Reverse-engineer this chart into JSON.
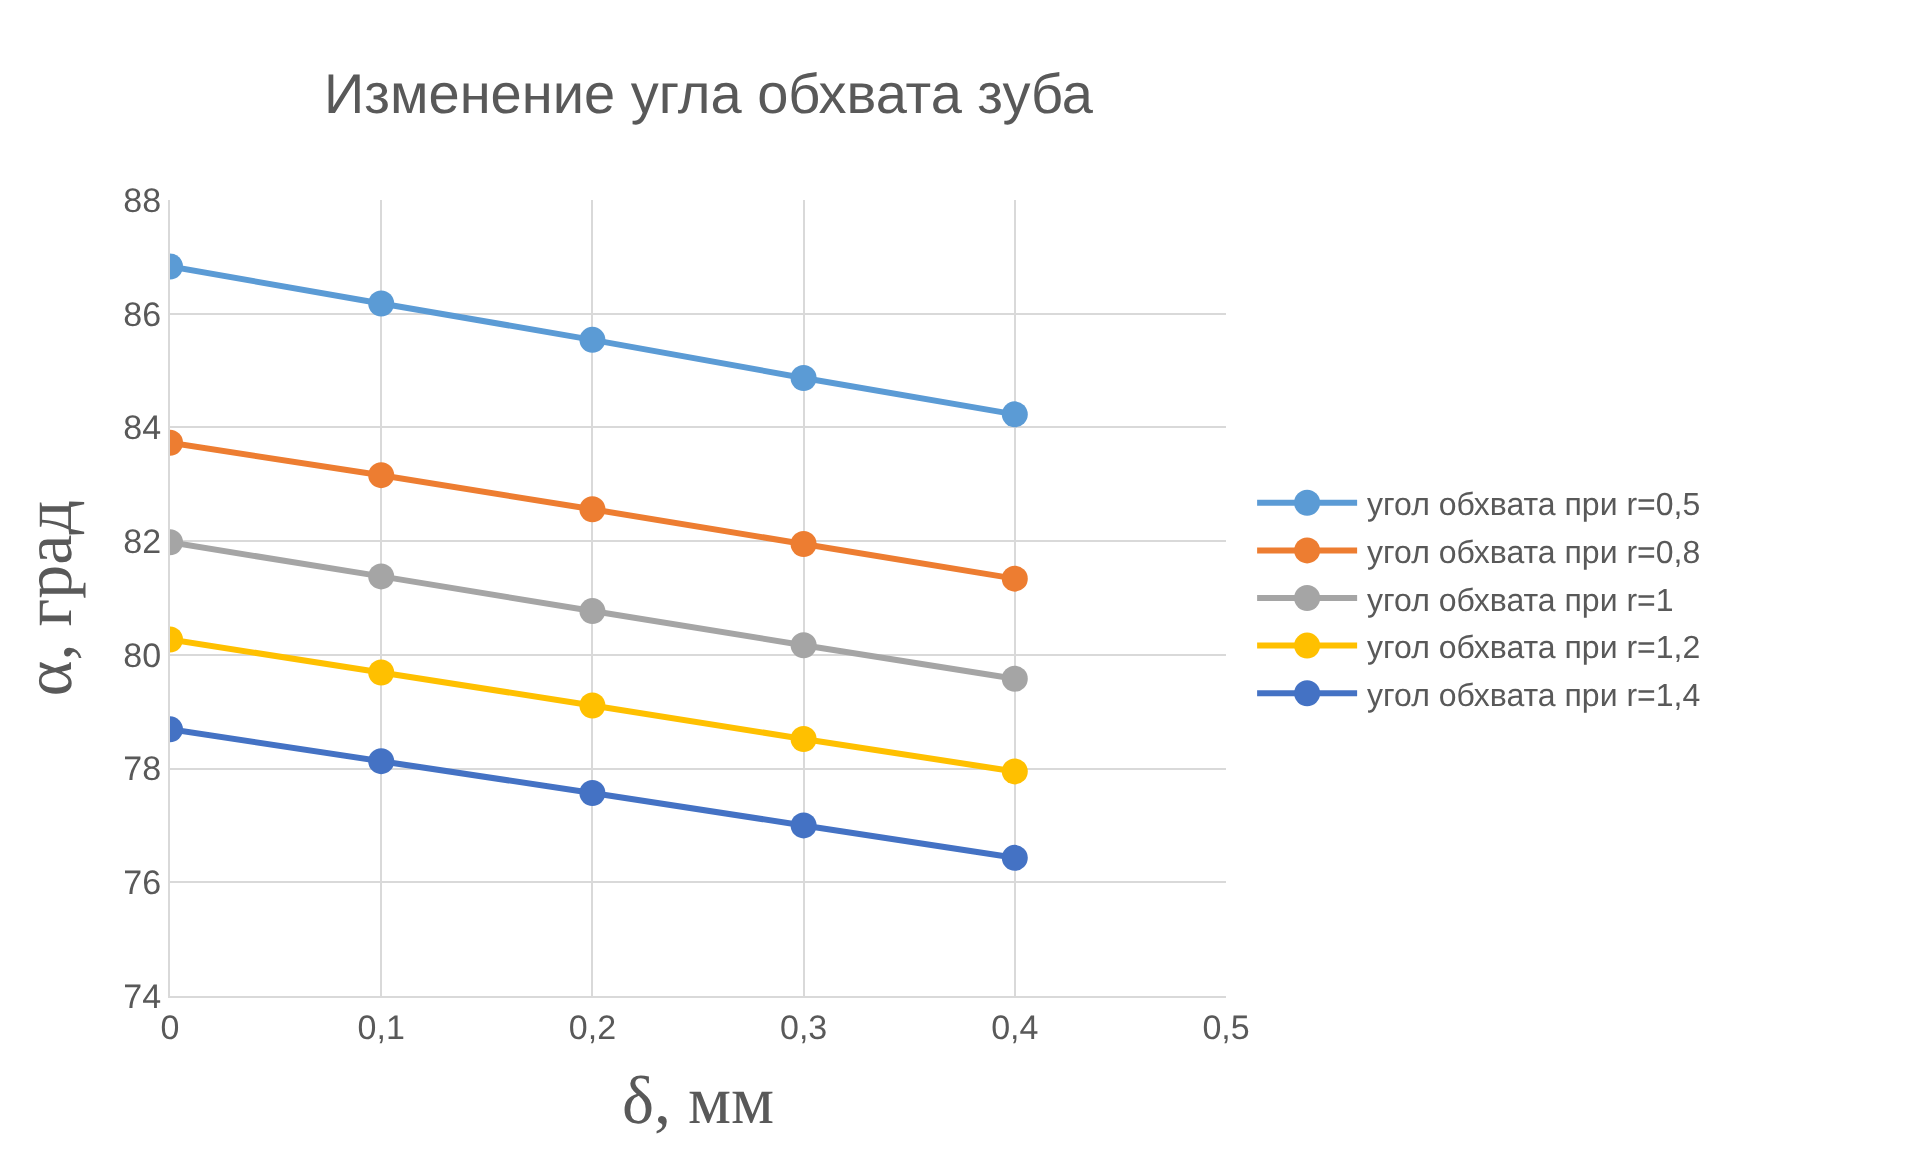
{
  "chart_data": {
    "type": "line",
    "title": "Изменение угла обхвата зуба",
    "xlabel": "δ, мм",
    "ylabel": "α, град",
    "x": [
      0,
      0.1,
      0.2,
      0.3,
      0.4
    ],
    "series": [
      {
        "name": "угол обхвата при r=0,5",
        "color": "#5b9bd5",
        "values": [
          86.83,
          86.18,
          85.54,
          84.87,
          84.23
        ]
      },
      {
        "name": "угол обхвата при r=0,8",
        "color": "#ed7d31",
        "values": [
          83.73,
          83.16,
          82.56,
          81.95,
          81.34
        ]
      },
      {
        "name": "угол обхвата при r=1",
        "color": "#a5a5a5",
        "values": [
          81.98,
          81.38,
          80.77,
          80.17,
          79.58
        ]
      },
      {
        "name": "угол обхвата при r=1,2",
        "color": "#ffc000",
        "values": [
          80.27,
          79.69,
          79.11,
          78.52,
          77.95
        ]
      },
      {
        "name": "угол обхвата при r=1,4",
        "color": "#4472c4",
        "values": [
          78.69,
          78.13,
          77.57,
          77.0,
          76.43
        ]
      }
    ],
    "xlim": [
      0,
      0.5
    ],
    "xticks": [
      0,
      {
        "value": 0.1,
        "label": "0,1"
      },
      {
        "value": 0.2,
        "label": "0,2"
      },
      {
        "value": 0.3,
        "label": "0,3"
      },
      {
        "value": 0.4,
        "label": "0,4"
      },
      {
        "value": 0.5,
        "label": "0,5"
      }
    ],
    "ylim": [
      74,
      88
    ],
    "yticks": [
      74,
      76,
      78,
      80,
      82,
      84,
      86,
      88
    ],
    "grid": true,
    "legend": "right",
    "marker": "circle",
    "line_style": "solid"
  }
}
